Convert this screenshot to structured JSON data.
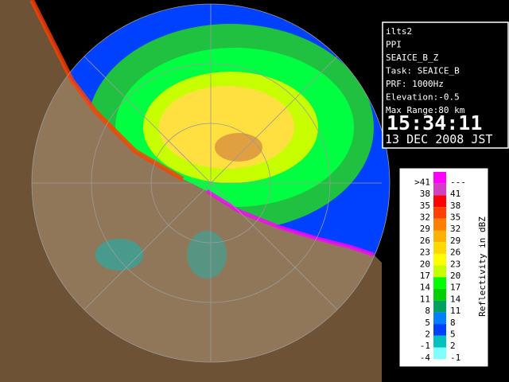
{
  "info_lines": [
    "ilts2",
    "PPI",
    "SEAICE_B_Z",
    "Task: SEAICE_B",
    "PRF: 1000Hz",
    "Elevation:-0.5",
    "Max Range:80 km"
  ],
  "time": "15:34:11",
  "date": "13 DEC 2008 JST",
  "legend": {
    "title": "Reflectivity in dBZ",
    "rows": [
      {
        "low": ">41",
        "high": "---",
        "color": "#ff00ff"
      },
      {
        "low": "38",
        "high": "41",
        "color": "#d040c0"
      },
      {
        "low": "35",
        "high": "38",
        "color": "#ff0000"
      },
      {
        "low": "32",
        "high": "35",
        "color": "#ff4000"
      },
      {
        "low": "29",
        "high": "32",
        "color": "#ff8000"
      },
      {
        "low": "26",
        "high": "29",
        "color": "#ffb000"
      },
      {
        "low": "23",
        "high": "26",
        "color": "#ffd800"
      },
      {
        "low": "20",
        "high": "23",
        "color": "#ffff00"
      },
      {
        "low": "17",
        "high": "20",
        "color": "#c8ff00"
      },
      {
        "low": "14",
        "high": "17",
        "color": "#00ff00"
      },
      {
        "low": "11",
        "high": "14",
        "color": "#00d000"
      },
      {
        "low": "8",
        "high": "11",
        "color": "#00a060"
      },
      {
        "low": "5",
        "high": "8",
        "color": "#0080ff"
      },
      {
        "low": "2",
        "high": "5",
        "color": "#0040ff"
      },
      {
        "low": "-1",
        "high": "2",
        "color": "#00c0c0"
      },
      {
        "low": "-4",
        "high": "-1",
        "color": "#80ffff"
      }
    ]
  }
}
